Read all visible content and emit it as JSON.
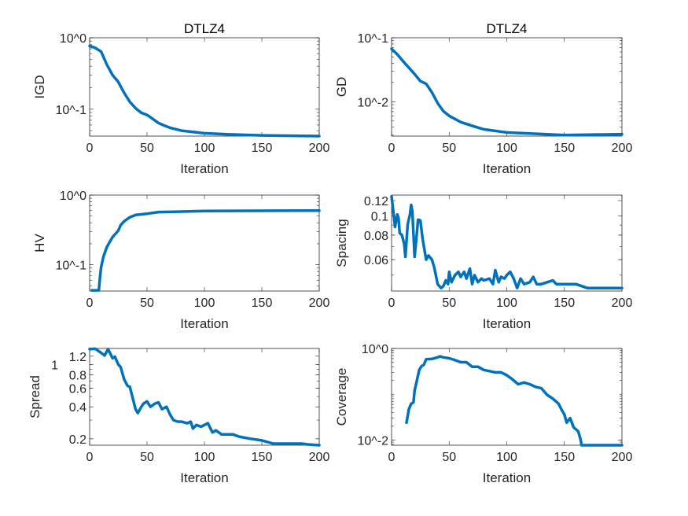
{
  "figure": {
    "line_color": "#0072BD",
    "axis_color": "#262626",
    "background": "#ffffff"
  },
  "chart_data": [
    {
      "type": "line",
      "title": "DTLZ4",
      "xlabel": "Iteration",
      "ylabel": "IGD",
      "xlim": [
        0,
        200
      ],
      "ylim": [
        0.042,
        1
      ],
      "yscale": "log",
      "grid": false,
      "xticks": [
        0,
        50,
        100,
        150,
        200
      ],
      "xtick_labels": [
        "0",
        "50",
        "100",
        "150",
        "200"
      ],
      "yticks": [
        1,
        0.1
      ],
      "ytick_labels": [
        "10^0",
        "10^-1"
      ],
      "x": [
        0,
        5,
        10,
        15,
        20,
        25,
        30,
        35,
        40,
        45,
        50,
        55,
        60,
        65,
        70,
        80,
        90,
        100,
        120,
        150,
        200
      ],
      "y": [
        0.77,
        0.72,
        0.64,
        0.42,
        0.3,
        0.24,
        0.17,
        0.127,
        0.103,
        0.089,
        0.083,
        0.073,
        0.064,
        0.059,
        0.055,
        0.05,
        0.048,
        0.046,
        0.0445,
        0.043,
        0.042
      ]
    },
    {
      "type": "line",
      "title": "DTLZ4",
      "xlabel": "Iteration",
      "ylabel": "GD",
      "xlim": [
        0,
        200
      ],
      "ylim": [
        0.0029,
        0.1
      ],
      "yscale": "log",
      "grid": false,
      "xticks": [
        0,
        50,
        100,
        150,
        200
      ],
      "xtick_labels": [
        "0",
        "50",
        "100",
        "150",
        "200"
      ],
      "yticks": [
        0.1,
        0.01
      ],
      "ytick_labels": [
        "10^-1",
        "10^-2"
      ],
      "x": [
        0,
        5,
        10,
        15,
        20,
        25,
        30,
        35,
        40,
        45,
        50,
        60,
        70,
        80,
        100,
        150,
        200
      ],
      "y": [
        0.067,
        0.055,
        0.043,
        0.034,
        0.027,
        0.021,
        0.019,
        0.014,
        0.0095,
        0.0071,
        0.006,
        0.0048,
        0.0042,
        0.0037,
        0.0033,
        0.003,
        0.0031
      ]
    },
    {
      "type": "line",
      "title": "",
      "xlabel": "Iteration",
      "ylabel": "HV",
      "xlim": [
        0,
        200
      ],
      "ylim": [
        0.042,
        1
      ],
      "yscale": "log",
      "grid": false,
      "xticks": [
        0,
        50,
        100,
        150,
        200
      ],
      "xtick_labels": [
        "0",
        "50",
        "100",
        "150",
        "200"
      ],
      "yticks": [
        1,
        0.1
      ],
      "ytick_labels": [
        "10^0",
        "10^-1"
      ],
      "x": [
        2,
        8,
        9,
        10,
        12,
        15,
        18,
        20,
        25,
        27,
        30,
        35,
        40,
        50,
        60,
        80,
        100,
        200
      ],
      "y": [
        0.043,
        0.043,
        0.065,
        0.092,
        0.13,
        0.18,
        0.22,
        0.25,
        0.31,
        0.37,
        0.42,
        0.48,
        0.52,
        0.54,
        0.57,
        0.58,
        0.59,
        0.6
      ]
    },
    {
      "type": "line",
      "title": "",
      "xlabel": "Iteration",
      "ylabel": "Spacing",
      "xlim": [
        0,
        200
      ],
      "ylim": [
        0.0415,
        0.128
      ],
      "yscale": "log",
      "grid": false,
      "xticks": [
        0,
        50,
        100,
        150,
        200
      ],
      "xtick_labels": [
        "0",
        "50",
        "100",
        "150",
        "200"
      ],
      "yticks": [
        0.06,
        0.08,
        0.1,
        0.12
      ],
      "ytick_labels": [
        "0.06",
        "0.08",
        "0.1",
        "0.12"
      ],
      "x": [
        0,
        2,
        3,
        5,
        6,
        7,
        9,
        11,
        12,
        14,
        16,
        17,
        18,
        20,
        22,
        23,
        25,
        27,
        30,
        32,
        35,
        37,
        40,
        43,
        45,
        47,
        49,
        50,
        52,
        55,
        58,
        60,
        63,
        65,
        68,
        70,
        72,
        75,
        78,
        80,
        85,
        88,
        90,
        93,
        95,
        98,
        100,
        103,
        106,
        109,
        112,
        115,
        120,
        123,
        126,
        130,
        135,
        140,
        143,
        150,
        155,
        160,
        170,
        180,
        200
      ],
      "y": [
        0.126,
        0.1,
        0.088,
        0.102,
        0.098,
        0.082,
        0.08,
        0.072,
        0.062,
        0.091,
        0.102,
        0.114,
        0.106,
        0.062,
        0.082,
        0.096,
        0.095,
        0.076,
        0.06,
        0.063,
        0.06,
        0.055,
        0.045,
        0.043,
        0.044,
        0.047,
        0.045,
        0.052,
        0.046,
        0.05,
        0.052,
        0.049,
        0.052,
        0.048,
        0.054,
        0.045,
        0.05,
        0.046,
        0.048,
        0.047,
        0.048,
        0.045,
        0.053,
        0.046,
        0.049,
        0.048,
        0.05,
        0.052,
        0.048,
        0.043,
        0.048,
        0.045,
        0.046,
        0.049,
        0.045,
        0.045,
        0.046,
        0.047,
        0.045,
        0.045,
        0.045,
        0.045,
        0.043,
        0.043,
        0.043
      ]
    },
    {
      "type": "line",
      "title": "",
      "xlabel": "Iteration",
      "ylabel": "Spread",
      "xlim": [
        0,
        200
      ],
      "ylim": [
        0.174,
        1.42
      ],
      "yscale": "log",
      "grid": false,
      "xticks": [
        0,
        50,
        100,
        150,
        200
      ],
      "xtick_labels": [
        "0",
        "50",
        "100",
        "150",
        "200"
      ],
      "yticks": [
        0.2,
        0.4,
        0.6,
        0.8,
        1,
        1.2
      ],
      "ytick_labels": [
        "0.2",
        "0.4",
        "0.6",
        "0.8",
        "1",
        "1.2"
      ],
      "x": [
        0,
        5,
        10,
        13,
        16,
        20,
        22,
        25,
        27,
        30,
        33,
        35,
        37,
        40,
        42,
        45,
        47,
        50,
        53,
        57,
        60,
        63,
        67,
        70,
        73,
        77,
        80,
        85,
        88,
        90,
        93,
        97,
        100,
        103,
        107,
        110,
        115,
        120,
        125,
        130,
        140,
        150,
        160,
        170,
        185,
        190,
        200
      ],
      "y": [
        1.4,
        1.41,
        1.29,
        1.22,
        1.4,
        1.15,
        1.19,
        1.0,
        0.95,
        0.73,
        0.63,
        0.62,
        0.51,
        0.38,
        0.35,
        0.4,
        0.43,
        0.45,
        0.4,
        0.43,
        0.44,
        0.38,
        0.4,
        0.34,
        0.3,
        0.29,
        0.29,
        0.28,
        0.29,
        0.25,
        0.27,
        0.26,
        0.27,
        0.28,
        0.23,
        0.24,
        0.22,
        0.22,
        0.22,
        0.21,
        0.2,
        0.193,
        0.18,
        0.18,
        0.18,
        0.177,
        0.174
      ]
    },
    {
      "type": "line",
      "title": "",
      "xlabel": "Iteration",
      "ylabel": "Coverage",
      "xlim": [
        0,
        200
      ],
      "ylim": [
        0.0077,
        1
      ],
      "yscale": "log",
      "grid": false,
      "xticks": [
        0,
        50,
        100,
        150,
        200
      ],
      "xtick_labels": [
        "0",
        "50",
        "100",
        "150",
        "200"
      ],
      "yticks": [
        1,
        0.01
      ],
      "ytick_labels": [
        "10^0",
        "10^-2"
      ],
      "x": [
        13,
        15,
        17,
        19,
        20,
        22,
        24,
        26,
        28,
        30,
        35,
        40,
        42,
        45,
        50,
        55,
        60,
        65,
        70,
        75,
        80,
        85,
        90,
        95,
        100,
        105,
        110,
        115,
        120,
        125,
        130,
        135,
        140,
        145,
        148,
        150,
        152,
        155,
        158,
        162,
        164,
        165,
        200
      ],
      "y": [
        0.024,
        0.047,
        0.062,
        0.066,
        0.12,
        0.2,
        0.34,
        0.41,
        0.44,
        0.58,
        0.59,
        0.64,
        0.67,
        0.64,
        0.61,
        0.56,
        0.5,
        0.5,
        0.4,
        0.4,
        0.34,
        0.32,
        0.3,
        0.3,
        0.26,
        0.21,
        0.165,
        0.18,
        0.165,
        0.145,
        0.135,
        0.097,
        0.08,
        0.062,
        0.044,
        0.036,
        0.024,
        0.03,
        0.019,
        0.0155,
        0.0104,
        0.0077,
        0.0077
      ]
    }
  ]
}
